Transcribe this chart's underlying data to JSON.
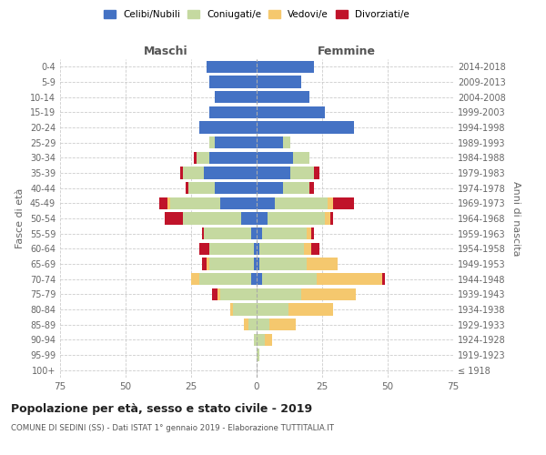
{
  "age_groups": [
    "100+",
    "95-99",
    "90-94",
    "85-89",
    "80-84",
    "75-79",
    "70-74",
    "65-69",
    "60-64",
    "55-59",
    "50-54",
    "45-49",
    "40-44",
    "35-39",
    "30-34",
    "25-29",
    "20-24",
    "15-19",
    "10-14",
    "5-9",
    "0-4"
  ],
  "birth_years": [
    "≤ 1918",
    "1919-1923",
    "1924-1928",
    "1929-1933",
    "1934-1938",
    "1939-1943",
    "1944-1948",
    "1949-1953",
    "1954-1958",
    "1959-1963",
    "1964-1968",
    "1969-1973",
    "1974-1978",
    "1979-1983",
    "1984-1988",
    "1989-1993",
    "1994-1998",
    "1999-2003",
    "2004-2008",
    "2009-2013",
    "2014-2018"
  ],
  "maschi": {
    "celibi": [
      0,
      0,
      0,
      0,
      0,
      0,
      2,
      1,
      1,
      2,
      6,
      14,
      16,
      20,
      18,
      16,
      22,
      18,
      16,
      18,
      19
    ],
    "coniugati": [
      0,
      0,
      1,
      3,
      9,
      14,
      20,
      17,
      17,
      18,
      22,
      19,
      10,
      8,
      5,
      2,
      0,
      0,
      0,
      0,
      0
    ],
    "vedovi": [
      0,
      0,
      0,
      2,
      1,
      1,
      3,
      1,
      0,
      0,
      0,
      1,
      0,
      0,
      0,
      0,
      0,
      0,
      0,
      0,
      0
    ],
    "divorziati": [
      0,
      0,
      0,
      0,
      0,
      2,
      0,
      2,
      4,
      1,
      7,
      3,
      1,
      1,
      1,
      0,
      0,
      0,
      0,
      0,
      0
    ]
  },
  "femmine": {
    "nubili": [
      0,
      0,
      0,
      0,
      0,
      0,
      2,
      1,
      1,
      2,
      4,
      7,
      10,
      13,
      14,
      10,
      37,
      26,
      20,
      17,
      22
    ],
    "coniugate": [
      0,
      1,
      3,
      5,
      12,
      17,
      21,
      18,
      17,
      17,
      22,
      20,
      10,
      9,
      6,
      3,
      0,
      0,
      0,
      0,
      0
    ],
    "vedove": [
      0,
      0,
      3,
      10,
      17,
      21,
      25,
      12,
      3,
      2,
      2,
      2,
      0,
      0,
      0,
      0,
      0,
      0,
      0,
      0,
      0
    ],
    "divorziate": [
      0,
      0,
      0,
      0,
      0,
      0,
      1,
      0,
      3,
      1,
      1,
      8,
      2,
      2,
      0,
      0,
      0,
      0,
      0,
      0,
      0
    ]
  },
  "color_celibi": "#4472C4",
  "color_coniugati": "#C5D9A0",
  "color_vedovi": "#F5C86E",
  "color_divorziati": "#C0132A",
  "xlim": 75,
  "title": "Popolazione per età, sesso e stato civile - 2019",
  "subtitle": "COMUNE DI SEDINI (SS) - Dati ISTAT 1° gennaio 2019 - Elaborazione TUTTITALIA.IT",
  "ylabel_left": "Fasce di età",
  "ylabel_right": "Anni di nascita",
  "maschi_label": "Maschi",
  "femmine_label": "Femmine",
  "legend_celibi": "Celibi/Nubili",
  "legend_coniugati": "Coniugati/e",
  "legend_vedovi": "Vedovi/e",
  "legend_divorziati": "Divorziati/e",
  "bg_color": "#ffffff"
}
